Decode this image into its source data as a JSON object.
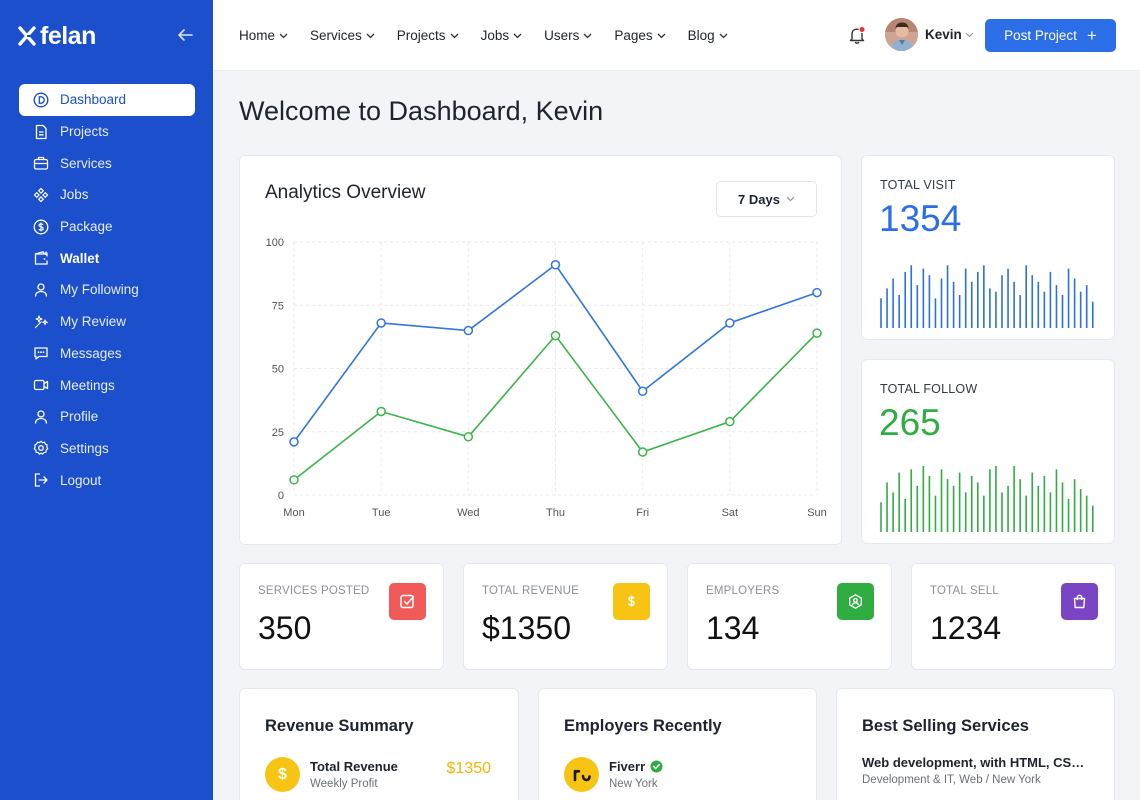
{
  "brand": {
    "name": "felan"
  },
  "sidebar": {
    "items": [
      {
        "label": "Dashboard",
        "icon": "dashboard-icon"
      },
      {
        "label": "Projects",
        "icon": "document-icon"
      },
      {
        "label": "Services",
        "icon": "briefcase-icon"
      },
      {
        "label": "Jobs",
        "icon": "diamond-icon"
      },
      {
        "label": "Package",
        "icon": "dollar-circle-icon"
      },
      {
        "label": "Wallet",
        "icon": "wallet-icon"
      },
      {
        "label": "My Following",
        "icon": "user-icon"
      },
      {
        "label": "My Review",
        "icon": "sparkle-icon"
      },
      {
        "label": "Messages",
        "icon": "chat-icon"
      },
      {
        "label": "Meetings",
        "icon": "video-icon"
      },
      {
        "label": "Profile",
        "icon": "profile-icon"
      },
      {
        "label": "Settings",
        "icon": "gear-icon"
      },
      {
        "label": "Logout",
        "icon": "logout-icon"
      }
    ]
  },
  "header": {
    "menu": [
      "Home",
      "Services",
      "Projects",
      "Jobs",
      "Users",
      "Pages",
      "Blog"
    ],
    "user_name": "Kevin",
    "post_button": "Post Project"
  },
  "page_title": "Welcome to Dashboard, Kevin",
  "analytics": {
    "title": "Analytics Overview",
    "range": "7 Days"
  },
  "chart_data": {
    "type": "line",
    "categories": [
      "Mon",
      "Tue",
      "Wed",
      "Thu",
      "Fri",
      "Sat",
      "Sun"
    ],
    "series": [
      {
        "color": "#2f75e4",
        "values": [
          21,
          68,
          65,
          91,
          41,
          68,
          80
        ]
      },
      {
        "color": "#3ab54a",
        "values": [
          6,
          33,
          23,
          63,
          17,
          29,
          64
        ]
      }
    ],
    "yticks": [
      "100",
      "75",
      "50",
      "25",
      "0"
    ],
    "ylim": [
      0,
      100
    ],
    "grid": true
  },
  "stats_big": [
    {
      "label": "TOTAL VISIT",
      "value": "1354",
      "color": "#2b6ee8",
      "bars": [
        0.45,
        0.6,
        0.75,
        0.5,
        0.85,
        0.95,
        0.65,
        0.9,
        0.8,
        0.45,
        0.75,
        0.95,
        0.7,
        0.5,
        0.9,
        0.7,
        0.85,
        0.95,
        0.6,
        0.55,
        0.8,
        0.9,
        0.7,
        0.5,
        0.95,
        0.8,
        0.7,
        0.55,
        0.85,
        0.65,
        0.5,
        0.9,
        0.75,
        0.55,
        0.65,
        0.4
      ]
    },
    {
      "label": "TOTAL FOLLOW",
      "value": "265",
      "color": "#2fad41",
      "bars": [
        0.45,
        0.75,
        0.6,
        0.9,
        0.5,
        0.95,
        0.7,
        1.0,
        0.85,
        0.55,
        0.95,
        0.8,
        0.7,
        0.9,
        0.6,
        0.85,
        0.75,
        0.55,
        0.95,
        1.0,
        0.6,
        0.7,
        1.0,
        0.8,
        0.55,
        0.9,
        0.7,
        0.85,
        0.6,
        0.95,
        0.75,
        0.5,
        0.8,
        0.65,
        0.55,
        0.4
      ]
    }
  ],
  "stats_small": [
    {
      "label": "SERVICES POSTED",
      "value": "350",
      "color": "#f25a5a",
      "icon": "check-box-icon"
    },
    {
      "label": "TOTAL REVENUE",
      "value": "$1350",
      "color": "#f7c413",
      "icon": "dollar-icon"
    },
    {
      "label": "EMPLOYERS",
      "value": "134",
      "color": "#2fad41",
      "icon": "employer-icon"
    },
    {
      "label": "TOTAL SELL",
      "value": "1234",
      "color": "#7a45c4",
      "icon": "shopping-bag-icon"
    }
  ],
  "revenue_summary": {
    "title": "Revenue Summary",
    "item_name": "Total Revenue",
    "item_sub": "Weekly Profit",
    "item_value": "$1350"
  },
  "employers_recently": {
    "title": "Employers Recently",
    "name": "Fiverr",
    "location": "New York"
  },
  "best_selling": {
    "title": "Best Selling Services",
    "name": "Web development, with HTML, CSS, JavaScript and PHP",
    "meta": "Development & IT, Web / New York"
  }
}
